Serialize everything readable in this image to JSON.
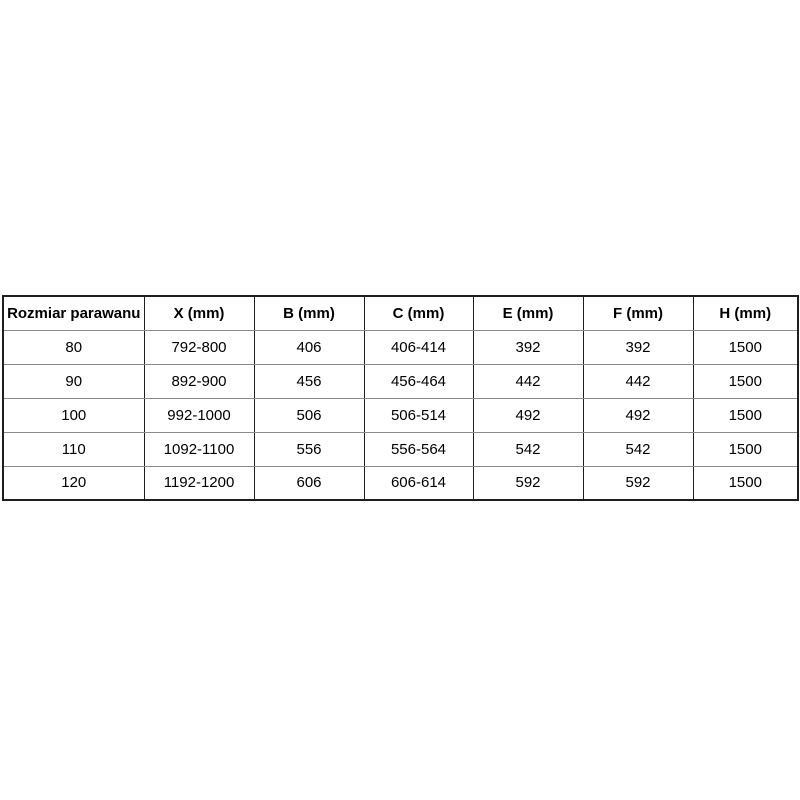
{
  "table": {
    "headers": [
      "Rozmiar parawanu",
      "X (mm)",
      "B (mm)",
      "C (mm)",
      "E (mm)",
      "F (mm)",
      "H (mm)"
    ],
    "rows": [
      [
        "80",
        "792-800",
        "406",
        "406-414",
        "392",
        "392",
        "1500"
      ],
      [
        "90",
        "892-900",
        "456",
        "456-464",
        "442",
        "442",
        "1500"
      ],
      [
        "100",
        "992-1000",
        "506",
        "506-514",
        "492",
        "492",
        "1500"
      ],
      [
        "110",
        "1092-1100",
        "556",
        "556-564",
        "542",
        "542",
        "1500"
      ],
      [
        "120",
        "1192-1200",
        "606",
        "606-614",
        "592",
        "592",
        "1500"
      ]
    ]
  },
  "colors": {
    "background": "#ffffff",
    "text": "#000000",
    "border_strong": "#1f1f1f",
    "border_light": "#8a8a8a"
  }
}
